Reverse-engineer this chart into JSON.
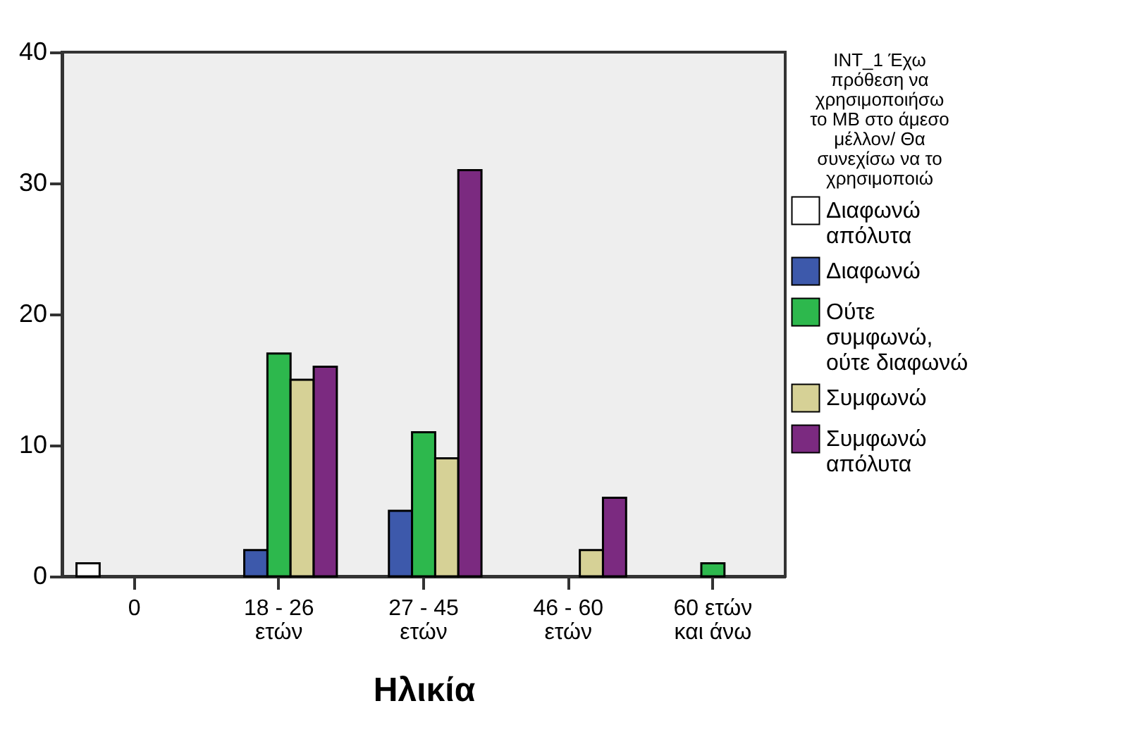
{
  "chart_data": {
    "type": "bar",
    "xlabel": "Ηλικία",
    "legend_title": "INT_1 Έχω πρόθεση να χρησιμοποιήσω το ΜΒ στο άμεσο μέλλον/ Θα συνεχίσω να το χρησιμοποιώ",
    "categories": [
      "0",
      "18 - 26 ετών",
      "27 - 45 ετών",
      "46 - 60 ετών",
      "60 ετών και άνω"
    ],
    "series": [
      {
        "name": "Διαφωνώ απόλυτα",
        "color": "#ffffff",
        "values": [
          1,
          null,
          null,
          null,
          null
        ]
      },
      {
        "name": "Διαφωνώ",
        "color": "#3d59ab",
        "values": [
          null,
          2,
          5,
          null,
          null
        ]
      },
      {
        "name": "Ούτε συμφωνώ, ούτε διαφωνώ",
        "color": "#2db84d",
        "values": [
          null,
          17,
          11,
          null,
          1
        ]
      },
      {
        "name": "Συμφωνώ",
        "color": "#d6d196",
        "values": [
          null,
          15,
          9,
          2,
          null
        ]
      },
      {
        "name": "Συμφωνώ απόλυτα",
        "color": "#7b2a80",
        "values": [
          null,
          16,
          31,
          6,
          null
        ]
      }
    ],
    "ylim": [
      0,
      40
    ],
    "yticks": [
      0,
      10,
      20,
      30,
      40
    ],
    "legend": "right"
  }
}
